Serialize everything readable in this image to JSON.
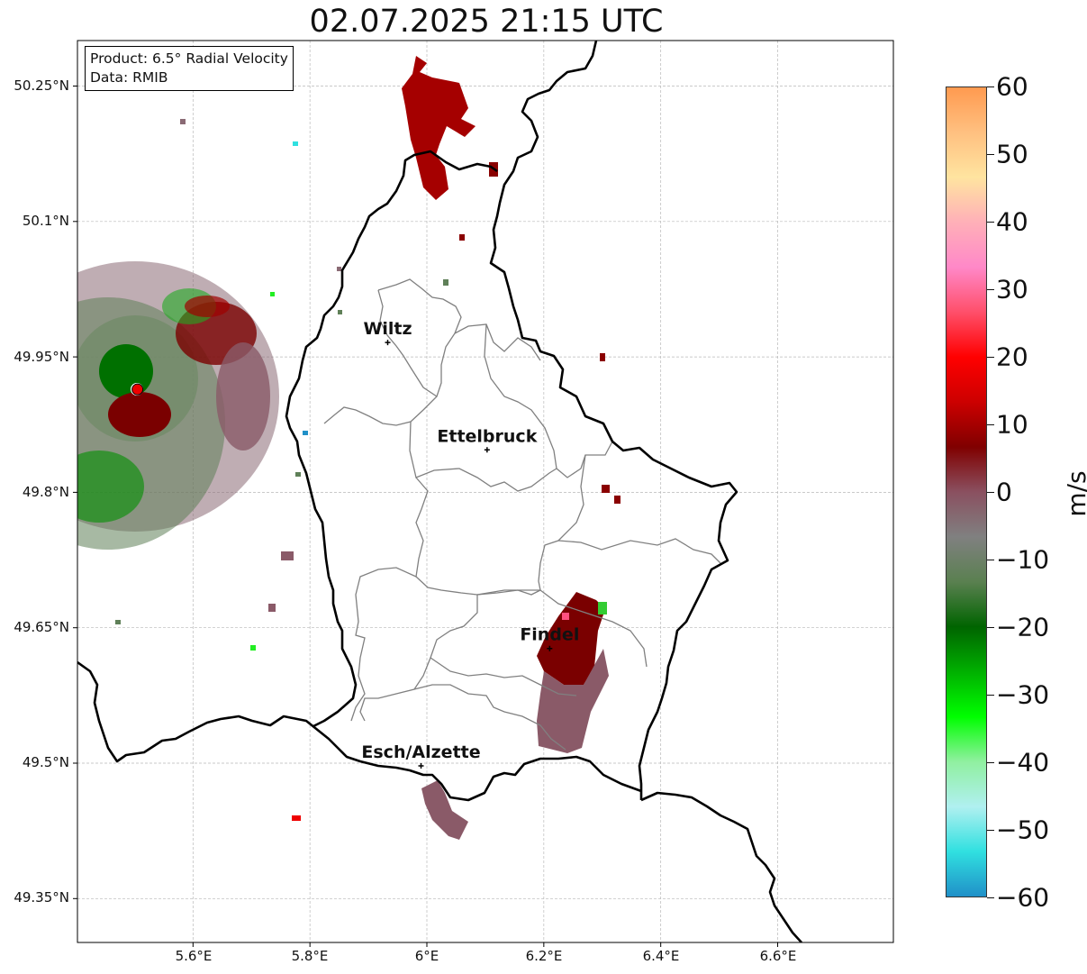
{
  "title": "02.07.2025 21:15 UTC",
  "info": {
    "product": "Product: 6.5° Radial Velocity",
    "data": "Data: RMIB"
  },
  "axes": {
    "lat_labels": [
      "50.25°N",
      "50.1°N",
      "49.95°N",
      "49.8°N",
      "49.65°N",
      "49.5°N",
      "49.35°N"
    ],
    "lon_labels": [
      "5.6°E",
      "5.8°E",
      "6°E",
      "6.2°E",
      "6.4°E",
      "6.6°E"
    ],
    "lat_values": [
      50.25,
      50.1,
      49.95,
      49.8,
      49.65,
      49.5,
      49.35
    ],
    "lon_values": [
      5.6,
      5.8,
      6.0,
      6.2,
      6.4,
      6.6
    ],
    "grid": true
  },
  "cities": [
    {
      "name": "Wiltz",
      "lon": 5.933,
      "lat": 49.966
    },
    {
      "name": "Ettelbruck",
      "lon": 6.103,
      "lat": 49.847
    },
    {
      "name": "Findel",
      "lon": 6.21,
      "lat": 49.627
    },
    {
      "name": "Esch/Alzette",
      "lon": 5.99,
      "lat": 49.497
    }
  ],
  "radar_site": {
    "lon": 5.505,
    "lat": 49.914
  },
  "colorbar": {
    "label": "m/s",
    "min": -60,
    "max": 60,
    "ticks": [
      "60",
      "50",
      "40",
      "30",
      "20",
      "10",
      "0",
      "−10",
      "−20",
      "−30",
      "−40",
      "−50",
      "−60"
    ],
    "tick_values": [
      60,
      50,
      40,
      30,
      20,
      10,
      0,
      -10,
      -20,
      -30,
      -40,
      -50,
      -60
    ],
    "stops": [
      "#ff9a50",
      "#ffc080",
      "#ffe4a0",
      "#ffb0b8",
      "#ff88c8",
      "#ff4f6a",
      "#ff0000",
      "#cc0000",
      "#800000",
      "#8a5060",
      "#808080",
      "#5a8050",
      "#006400",
      "#00b000",
      "#00ff00",
      "#90f0a0",
      "#b0f0f0",
      "#30e0e0",
      "#2090c8"
    ]
  },
  "colors": {
    "inbound_dark": "#7a0000",
    "inbound_red": "#b00000",
    "mauve": "#8a5a68",
    "gray_green": "#5f8058",
    "green": "#008000",
    "bright_green": "#22dd22"
  }
}
